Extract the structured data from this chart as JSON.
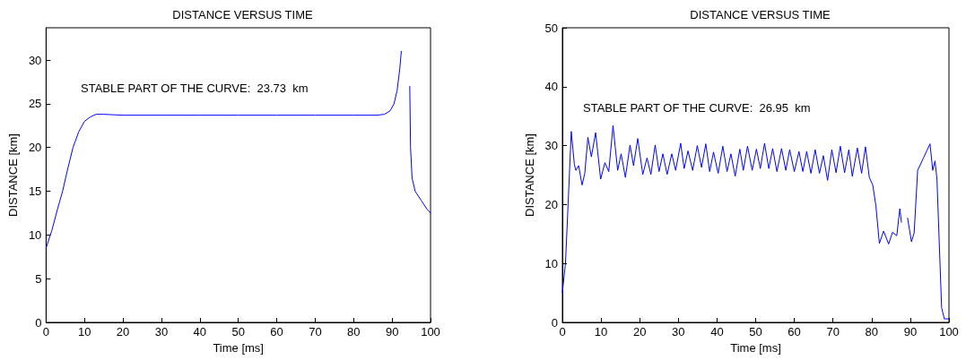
{
  "chart_data": [
    {
      "type": "line",
      "title": "DISTANCE VERSUS TIME",
      "xlabel": "Time [ms]",
      "ylabel": "DISTANCE [km]",
      "annotations": [
        "STABLE PART OF THE CURVE:  23.73  km"
      ],
      "xlim": [
        0,
        100
      ],
      "xticks": [
        0,
        10,
        20,
        30,
        40,
        50,
        60,
        70,
        80,
        90,
        100
      ],
      "ylim": [
        0,
        33.7
      ],
      "yticks": [
        0,
        5,
        10,
        15,
        20,
        25,
        30
      ],
      "grid": false,
      "marker": "none",
      "line_style": "solid",
      "series": [
        {
          "color": "#0000ff",
          "x": [
            0,
            1.5,
            3,
            4.3,
            5.5,
            7,
            8.5,
            10,
            11.5,
            13,
            15,
            20,
            30,
            40,
            50,
            60,
            70,
            80,
            86,
            88,
            89.5,
            90.5,
            91.3,
            92,
            92.4,
            92.8,
            94.3,
            94.6,
            94.8,
            95.2,
            96,
            97.5,
            99,
            100
          ],
          "values": [
            8.5,
            10.5,
            13,
            15,
            17.3,
            20,
            21.8,
            23,
            23.5,
            23.8,
            23.8,
            23.7,
            23.7,
            23.7,
            23.7,
            23.7,
            23.7,
            23.7,
            23.7,
            23.8,
            24.2,
            25,
            26.5,
            29,
            31,
            null,
            null,
            27,
            20,
            16.5,
            15,
            14,
            13,
            12.5
          ]
        }
      ]
    },
    {
      "type": "line",
      "title": "DISTANCE VERSUS TIME",
      "xlabel": "Time [ms]",
      "ylabel": "DISTANCE [km]",
      "annotations": [
        "STABLE PART OF THE CURVE:  26.95  km"
      ],
      "xlim": [
        0,
        100
      ],
      "xticks": [
        0,
        10,
        20,
        30,
        40,
        50,
        60,
        70,
        80,
        90,
        100
      ],
      "ylim": [
        0,
        50
      ],
      "yticks": [
        0,
        10,
        20,
        30,
        40,
        50
      ],
      "grid": false,
      "marker": "none",
      "line_style": "solid",
      "series": [
        {
          "color": "#0000ff",
          "x": [
            0,
            0.8,
            1.5,
            2.3,
            3.1,
            3.5,
            4.2,
            5.1,
            5.8,
            6.6,
            7.5,
            8.6,
            9.9,
            11,
            12,
            13.1,
            14.3,
            15.2,
            16.3,
            17.5,
            18.4,
            19.5,
            20.8,
            21.9,
            22.9,
            24,
            25,
            26,
            27.1,
            28.3,
            29.3,
            30.6,
            31.5,
            32.5,
            33.7,
            34.9,
            36,
            37.1,
            38.1,
            39.1,
            40.3,
            41.5,
            42.6,
            43.6,
            44.7,
            45.9,
            46.8,
            47.9,
            49.1,
            50.2,
            51.2,
            52.3,
            53.4,
            54.4,
            55.5,
            56.7,
            57.8,
            58.8,
            60,
            61.2,
            62.2,
            63.2,
            64.3,
            65.4,
            66.5,
            67.5,
            68.6,
            69.7,
            70.8,
            71.9,
            73,
            74.1,
            75,
            76.3,
            77.4,
            78.4,
            79.4,
            80.3,
            81.1,
            82,
            83.1,
            84.4,
            85.4,
            86.5,
            87.3,
            87.7,
            88.1,
            88.6,
            89.3,
            90.3,
            91,
            91.9,
            93.4,
            95.1,
            95.8,
            96.4,
            96.9,
            98.1,
            98.8,
            100
          ],
          "values": [
            5.1,
            10,
            20.3,
            32.4,
            26.8,
            25.8,
            26.6,
            23.3,
            25.3,
            31.4,
            28.1,
            32.2,
            24.3,
            27.1,
            25.6,
            33.4,
            25.8,
            28.6,
            24.6,
            30.1,
            26.6,
            31.2,
            25.1,
            27.9,
            25.1,
            30.1,
            25.6,
            28.6,
            25.1,
            28.6,
            25.8,
            30.4,
            26.1,
            29.1,
            25.8,
            30,
            26.3,
            30.3,
            25.6,
            28.9,
            25.3,
            29.9,
            25.6,
            28.6,
            24.8,
            29.4,
            25.8,
            29.9,
            25.8,
            29.4,
            26.1,
            30.4,
            26.1,
            29.5,
            25.6,
            29.5,
            25.8,
            29.3,
            25.6,
            29,
            25.6,
            29,
            25.3,
            29.3,
            25.3,
            28.3,
            24.1,
            29.3,
            25.4,
            29.9,
            25.4,
            29.3,
            24.8,
            29.6,
            25.3,
            29.8,
            24.6,
            23.3,
            19.8,
            13.4,
            15.5,
            13.3,
            15.3,
            14.7,
            19.3,
            17,
            null,
            null,
            17.7,
            13.7,
            15.2,
            25.8,
            27.9,
            30.3,
            25.8,
            27.4,
            24.3,
            2.5,
            0.6,
            0.6
          ]
        }
      ]
    }
  ]
}
